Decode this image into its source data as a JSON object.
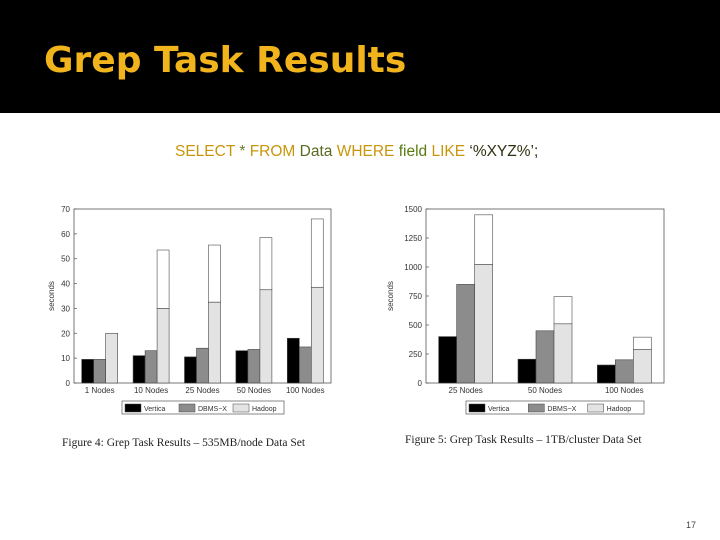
{
  "slide": {
    "title": "Grep Task Results",
    "query_parts": [
      "SELECT",
      " * ",
      "FROM",
      " Data ",
      "WHERE",
      " field ",
      "LIKE",
      " ‘%XYZ%’;"
    ],
    "page_number": "17",
    "colors": {
      "header_bg": "#000000",
      "title": "#f2b41c"
    }
  },
  "chart_data": [
    {
      "type": "bar",
      "subtype": "stacked-grouped",
      "caption": "Figure 4:  Grep Task Results – 535MB/node Data Set",
      "ylabel": "seconds",
      "xlabel": "",
      "ylim": [
        0,
        70
      ],
      "yticks": [
        0,
        10,
        20,
        30,
        40,
        50,
        60,
        70
      ],
      "categories": [
        "1 Nodes",
        "10 Nodes",
        "25 Nodes",
        "50 Nodes",
        "100 Nodes"
      ],
      "legend": {
        "placement": "bottom",
        "entries": [
          "Vertica",
          "DBMS−X",
          "Hadoop"
        ]
      },
      "series": [
        {
          "name": "Vertica",
          "color": "#000000",
          "values": [
            9.5,
            11,
            10.5,
            13,
            18
          ]
        },
        {
          "name": "DBMS−X",
          "color": "#8c8c8c",
          "values": [
            9.5,
            13,
            14,
            13.5,
            14.5
          ]
        },
        {
          "name": "Hadoop",
          "color": "#e3e3e3",
          "values": [
            20,
            30,
            32.5,
            37.5,
            38.5
          ],
          "stacked_total": [
            20,
            53.5,
            55.5,
            58.5,
            66
          ]
        }
      ]
    },
    {
      "type": "bar",
      "subtype": "stacked-grouped",
      "caption": "Figure 5:  Grep Task Results – 1TB/cluster Data Set",
      "ylabel": "seconds",
      "xlabel": "",
      "ylim": [
        0,
        1500
      ],
      "yticks": [
        0,
        250,
        500,
        750,
        1000,
        1250,
        1500
      ],
      "categories": [
        "25 Nodes",
        "50 Nodes",
        "100 Nodes"
      ],
      "legend": {
        "placement": "bottom",
        "entries": [
          "Vertica",
          "DBMS−X",
          "Hadoop"
        ]
      },
      "series": [
        {
          "name": "Vertica",
          "color": "#000000",
          "values": [
            400,
            205,
            155
          ]
        },
        {
          "name": "DBMS−X",
          "color": "#8c8c8c",
          "values": [
            850,
            450,
            200
          ]
        },
        {
          "name": "Hadoop",
          "color": "#e3e3e3",
          "values": [
            1020,
            510,
            290
          ],
          "stacked_total": [
            1450,
            745,
            395
          ]
        }
      ]
    }
  ]
}
